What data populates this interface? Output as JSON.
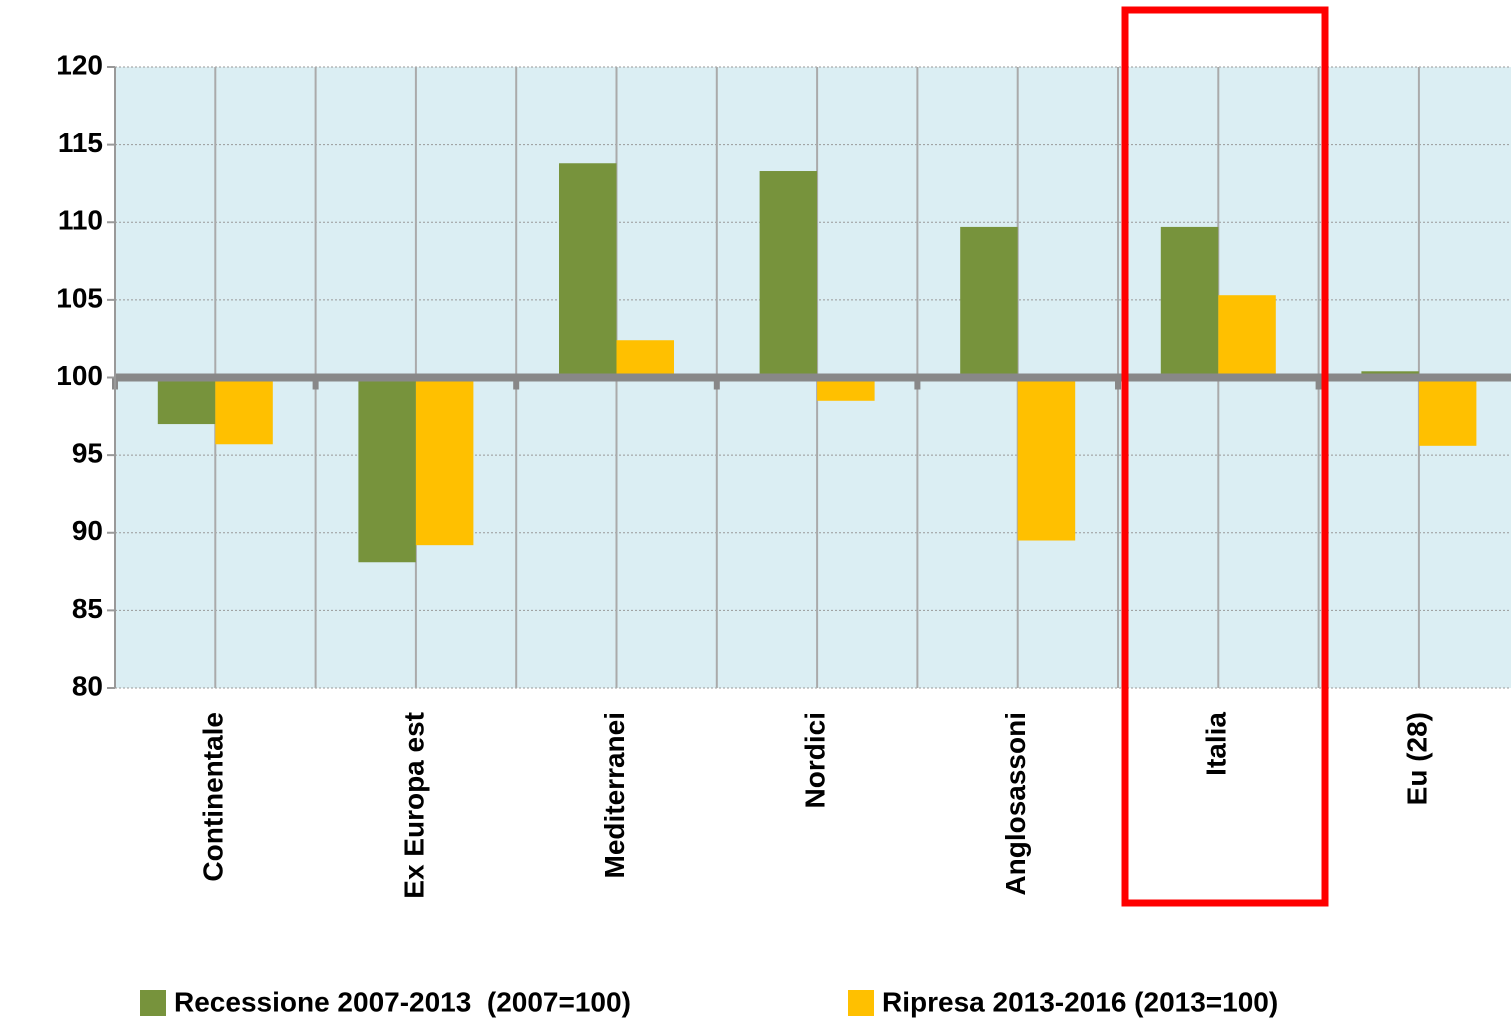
{
  "chart_data": {
    "type": "bar",
    "categories": [
      "Continentale",
      "Ex Europa est",
      "Mediterranei",
      "Nordici",
      "Anglosassoni",
      "Italia",
      "Eu (28)"
    ],
    "series": [
      {
        "name": "Recessione 2007-2013  (2007=100)",
        "color": "#77933c",
        "values": [
          97.0,
          88.1,
          113.8,
          113.3,
          109.7,
          109.7,
          100.4
        ]
      },
      {
        "name": "Ripresa 2013-2016 (2013=100)",
        "color": "#ffc000",
        "values": [
          95.7,
          89.2,
          102.4,
          98.5,
          89.5,
          105.3,
          95.6
        ]
      }
    ],
    "ylim": [
      80,
      120
    ],
    "yticks": [
      80,
      85,
      90,
      95,
      100,
      105,
      110,
      115,
      120
    ],
    "baseline": 100,
    "grid": true,
    "legend": "bottom"
  }
}
